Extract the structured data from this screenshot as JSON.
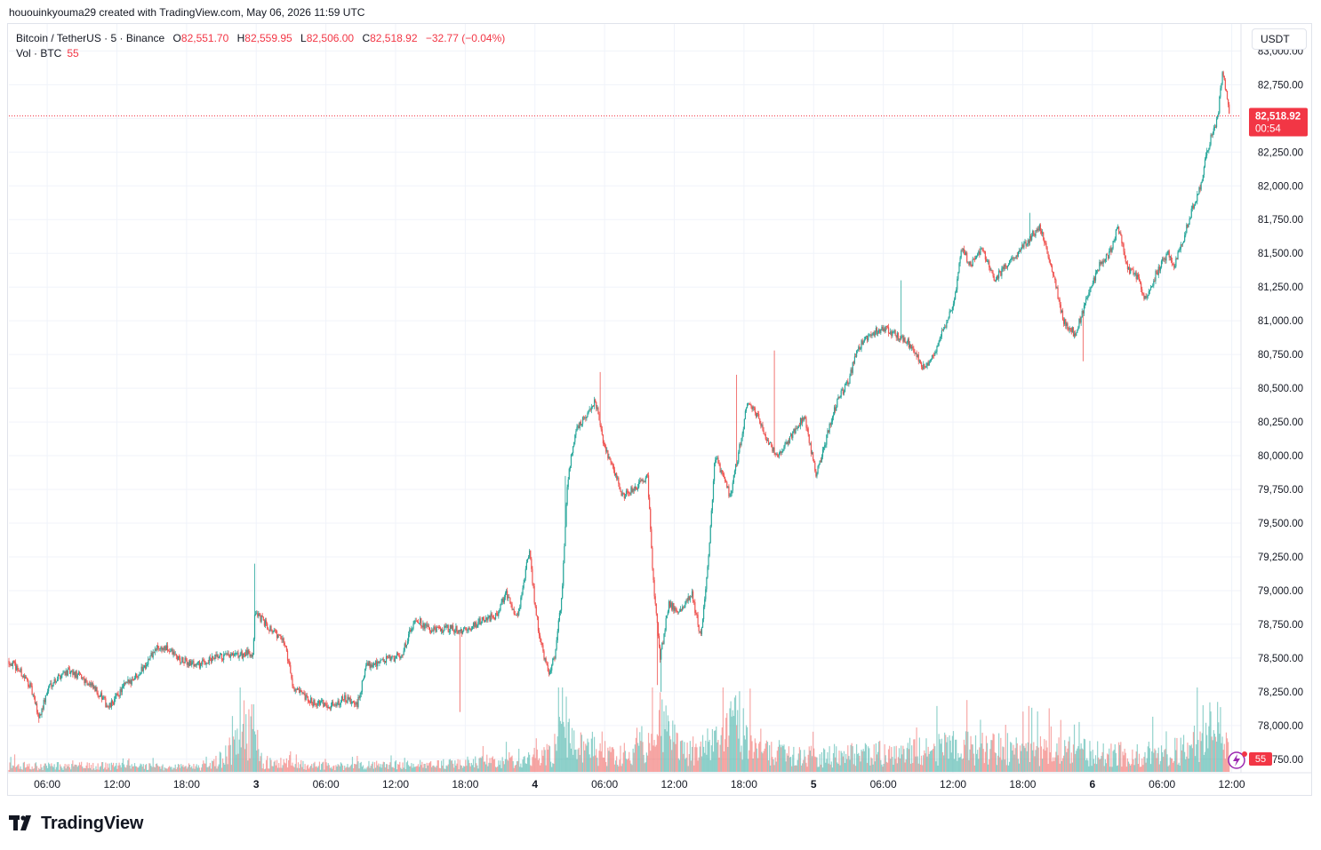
{
  "header": {
    "credit": "hououinkyouma29 created with TradingView.com, May 06, 2026 11:59 UTC"
  },
  "legend": {
    "symbol": "Bitcoin / TetherUS · 5 · Binance",
    "open_label": "O",
    "open": "82,551.70",
    "high_label": "H",
    "high": "82,559.95",
    "low_label": "L",
    "low": "82,506.00",
    "close_label": "C",
    "close": "82,518.92",
    "change": "−32.77 (−0.04%)",
    "volume_label": "Vol · BTC",
    "volume": "55"
  },
  "currency_button": "USDT",
  "brand": "TradingView",
  "colors": {
    "up": "#26a69a",
    "down": "#ef5350",
    "price_tag": "#f23645",
    "grid": "#f0f3fa"
  },
  "chart_data": {
    "type": "candlestick",
    "symbol": "BTCUSDT",
    "interval": "5",
    "y_ticks": [
      83000,
      82750,
      82500,
      82250,
      82000,
      81750,
      81500,
      81250,
      81000,
      80750,
      80500,
      80250,
      80000,
      79750,
      79500,
      79250,
      79000,
      78750,
      78500,
      78250,
      78000,
      77750
    ],
    "y_tick_labels": [
      "83,000.00",
      "82,750.00",
      "82,500.00",
      "82,250.00",
      "82,000.00",
      "81,750.00",
      "81,500.00",
      "81,250.00",
      "81,000.00",
      "80,750.00",
      "80,500.00",
      "80,250.00",
      "80,000.00",
      "79,750.00",
      "79,500.00",
      "79,250.00",
      "79,000.00",
      "78,750.00",
      "78,500.00",
      "78,250.00",
      "78,000.00",
      "77,750.00"
    ],
    "ylim": [
      77650,
      83200
    ],
    "x_tick_labels": [
      "06:00",
      "12:00",
      "18:00",
      "3",
      "06:00",
      "12:00",
      "18:00",
      "4",
      "06:00",
      "12:00",
      "18:00",
      "5",
      "06:00",
      "12:00",
      "18:00",
      "6",
      "06:00",
      "12:00"
    ],
    "x_tick_hours": [
      6,
      12,
      18,
      24,
      30,
      36,
      42,
      48,
      54,
      60,
      66,
      72,
      78,
      84,
      90,
      96,
      102,
      108
    ],
    "xlim_hours": [
      2.7,
      108.8
    ],
    "last_price": 82518.92,
    "last_price_label": "82,518.92",
    "countdown": "00:54",
    "volume_last_label": "55",
    "price_path": [
      [
        2.7,
        78480
      ],
      [
        3.5,
        78420
      ],
      [
        4.5,
        78300
      ],
      [
        5.3,
        78060
      ],
      [
        6.2,
        78300
      ],
      [
        7.5,
        78400
      ],
      [
        9.0,
        78360
      ],
      [
        10.5,
        78230
      ],
      [
        11.3,
        78130
      ],
      [
        12.5,
        78280
      ],
      [
        14,
        78400
      ],
      [
        15.5,
        78580
      ],
      [
        16.5,
        78560
      ],
      [
        17.5,
        78480
      ],
      [
        19,
        78450
      ],
      [
        20.5,
        78500
      ],
      [
        22.5,
        78520
      ],
      [
        23.7,
        78540
      ],
      [
        23.9,
        78850
      ],
      [
        24.5,
        78780
      ],
      [
        25.5,
        78700
      ],
      [
        26.5,
        78600
      ],
      [
        27.2,
        78280
      ],
      [
        28.5,
        78180
      ],
      [
        30.5,
        78150
      ],
      [
        31.5,
        78200
      ],
      [
        32.7,
        78150
      ],
      [
        33.5,
        78450
      ],
      [
        35,
        78480
      ],
      [
        36.5,
        78520
      ],
      [
        37.7,
        78800
      ],
      [
        39,
        78700
      ],
      [
        40.5,
        78720
      ],
      [
        42,
        78700
      ],
      [
        43.5,
        78780
      ],
      [
        44.7,
        78820
      ],
      [
        45.5,
        78980
      ],
      [
        46.5,
        78800
      ],
      [
        47.5,
        79300
      ],
      [
        48,
        78900
      ],
      [
        48.5,
        78600
      ],
      [
        49.2,
        78400
      ],
      [
        49.7,
        78500
      ],
      [
        50.3,
        78950
      ],
      [
        50.8,
        79800
      ],
      [
        51.5,
        80200
      ],
      [
        52.5,
        80300
      ],
      [
        53.2,
        80400
      ],
      [
        54,
        80050
      ],
      [
        54.8,
        79900
      ],
      [
        55.5,
        79700
      ],
      [
        56.5,
        79750
      ],
      [
        57.7,
        79850
      ],
      [
        58.2,
        79050
      ],
      [
        58.8,
        78500
      ],
      [
        59.5,
        78900
      ],
      [
        60.5,
        78850
      ],
      [
        61.5,
        78980
      ],
      [
        62.3,
        78650
      ],
      [
        63,
        79300
      ],
      [
        63.5,
        80000
      ],
      [
        64.2,
        79850
      ],
      [
        64.8,
        79700
      ],
      [
        65.5,
        80000
      ],
      [
        66.3,
        80400
      ],
      [
        67.2,
        80300
      ],
      [
        68,
        80100
      ],
      [
        69,
        80000
      ],
      [
        70.5,
        80200
      ],
      [
        71.2,
        80300
      ],
      [
        72.2,
        79850
      ],
      [
        73,
        80100
      ],
      [
        74,
        80400
      ],
      [
        75,
        80550
      ],
      [
        75.8,
        80800
      ],
      [
        77,
        80900
      ],
      [
        78,
        80950
      ],
      [
        79,
        80900
      ],
      [
        80,
        80850
      ],
      [
        81.5,
        80650
      ],
      [
        82.3,
        80750
      ],
      [
        83,
        80900
      ],
      [
        84,
        81100
      ],
      [
        84.8,
        81550
      ],
      [
        85.5,
        81400
      ],
      [
        86.5,
        81550
      ],
      [
        87.5,
        81300
      ],
      [
        89,
        81450
      ],
      [
        90.5,
        81600
      ],
      [
        91.5,
        81700
      ],
      [
        92.5,
        81400
      ],
      [
        93.5,
        81000
      ],
      [
        94.5,
        80900
      ],
      [
        95.5,
        81150
      ],
      [
        96.5,
        81400
      ],
      [
        97.5,
        81500
      ],
      [
        98.2,
        81700
      ],
      [
        99,
        81400
      ],
      [
        100,
        81300
      ],
      [
        100.5,
        81150
      ],
      [
        101.5,
        81350
      ],
      [
        102.5,
        81500
      ],
      [
        103,
        81400
      ],
      [
        103.8,
        81600
      ],
      [
        104.5,
        81800
      ],
      [
        105.3,
        82000
      ],
      [
        106,
        82300
      ],
      [
        106.8,
        82500
      ],
      [
        107.2,
        82850
      ],
      [
        107.5,
        82700
      ],
      [
        107.8,
        82520
      ]
    ],
    "spikes_low": [
      [
        5.3,
        78020
      ],
      [
        41.5,
        78100
      ],
      [
        58.9,
        78250
      ],
      [
        58.5,
        78300
      ],
      [
        95.2,
        80700
      ]
    ],
    "spikes_high": [
      [
        23.9,
        79200
      ],
      [
        50.6,
        79850
      ],
      [
        53.6,
        80620
      ],
      [
        65.4,
        80600
      ],
      [
        68.6,
        80780
      ],
      [
        79.5,
        81300
      ],
      [
        90.6,
        81800
      ]
    ],
    "volume_profile": [
      [
        2.7,
        0.12
      ],
      [
        10,
        0.12
      ],
      [
        20,
        0.1
      ],
      [
        23.9,
        0.9
      ],
      [
        24.5,
        0.2
      ],
      [
        30,
        0.12
      ],
      [
        40,
        0.15
      ],
      [
        47,
        0.25
      ],
      [
        49.5,
        0.35
      ],
      [
        50.6,
        1.0
      ],
      [
        51.5,
        0.6
      ],
      [
        55,
        0.3
      ],
      [
        58.2,
        0.7
      ],
      [
        58.9,
        1.0
      ],
      [
        60.5,
        0.4
      ],
      [
        63,
        0.45
      ],
      [
        65.5,
        1.0
      ],
      [
        67,
        0.55
      ],
      [
        70,
        0.3
      ],
      [
        75,
        0.35
      ],
      [
        80,
        0.4
      ],
      [
        84,
        0.5
      ],
      [
        90,
        0.45
      ],
      [
        95,
        0.4
      ],
      [
        100,
        0.35
      ],
      [
        104,
        0.45
      ],
      [
        105.8,
        0.85
      ],
      [
        107.2,
        0.8
      ],
      [
        108.5,
        0.3
      ]
    ]
  }
}
